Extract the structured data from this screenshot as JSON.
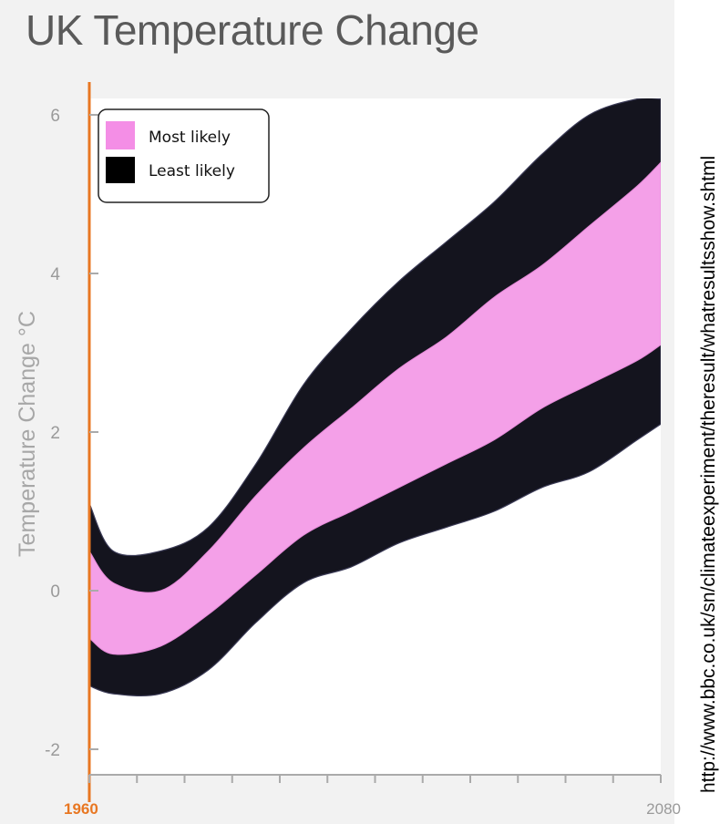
{
  "chart_data": {
    "type": "area",
    "title": "UK Temperature Change",
    "ylabel": "Temperature Change °C",
    "xlabel": "",
    "xlim": [
      1960,
      2080
    ],
    "ylim": [
      -2.3,
      6.2
    ],
    "yticks": [
      6,
      4,
      2,
      0,
      -2
    ],
    "x_tick_labels": [
      {
        "value": 1960,
        "label": "1960",
        "color": "#e87722"
      },
      {
        "value": 2080,
        "label": "2080",
        "color": "#9a9a9a"
      }
    ],
    "x_minor_ticks": [
      1960,
      1970,
      1980,
      1990,
      2000,
      2010,
      2020,
      2030,
      2040,
      2050,
      2060,
      2070,
      2080
    ],
    "legend": {
      "placement": "top-left",
      "entries": [
        {
          "label": "Most likely",
          "color": "#f48ee6"
        },
        {
          "label": "Least likely",
          "color": "#000000"
        }
      ]
    },
    "grid": false,
    "series": [
      {
        "name": "Least likely",
        "role": "outer-envelope",
        "color": "#14141e",
        "x": [
          1960,
          1965,
          1975,
          1985,
          1995,
          2005,
          2015,
          2025,
          2035,
          2045,
          2055,
          2065,
          2075,
          2080
        ],
        "low": [
          -1.2,
          -1.3,
          -1.3,
          -1.0,
          -0.4,
          0.1,
          0.3,
          0.6,
          0.8,
          1.0,
          1.3,
          1.5,
          1.9,
          2.1
        ],
        "high": [
          1.1,
          0.5,
          0.5,
          0.8,
          1.6,
          2.6,
          3.3,
          3.9,
          4.4,
          4.9,
          5.5,
          6.0,
          6.2,
          6.2
        ]
      },
      {
        "name": "Most likely",
        "role": "inner-core",
        "color": "#f4a0e8",
        "x": [
          1960,
          1965,
          1975,
          1985,
          1995,
          2005,
          2015,
          2025,
          2035,
          2045,
          2055,
          2065,
          2075,
          2080
        ],
        "low": [
          -0.6,
          -0.8,
          -0.7,
          -0.3,
          0.2,
          0.7,
          1.0,
          1.3,
          1.6,
          1.9,
          2.3,
          2.6,
          2.9,
          3.1
        ],
        "high": [
          0.5,
          0.1,
          0.0,
          0.5,
          1.2,
          1.8,
          2.3,
          2.8,
          3.2,
          3.7,
          4.1,
          4.6,
          5.1,
          5.4
        ]
      }
    ]
  },
  "source": {
    "url": "http://www.bbc.co.uk/sn/climateexperiment/theresult/whatresultsshow.shtml"
  }
}
